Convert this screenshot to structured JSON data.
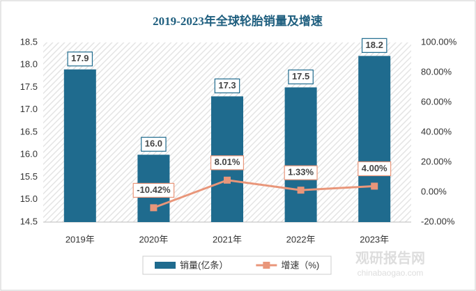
{
  "chart_data": {
    "type": "bar",
    "title": "2019-2023年全球轮胎销量及增速",
    "categories": [
      "2019年",
      "2020年",
      "2021年",
      "2022年",
      "2023年"
    ],
    "series": [
      {
        "name": "销量(亿条）",
        "type": "bar",
        "color": "#1f6b8e",
        "values": [
          17.9,
          16.0,
          17.3,
          17.5,
          18.2
        ],
        "value_labels": [
          "17.9",
          "16.0",
          "17.3",
          "17.5",
          "18.2"
        ]
      },
      {
        "name": "增速（%)",
        "type": "line",
        "axis": "y2",
        "color": "#e9967a",
        "values": [
          null,
          -10.42,
          8.01,
          1.33,
          4.0
        ],
        "value_labels": [
          null,
          "-10.42%",
          "8.01%",
          "1.33%",
          "4.00%"
        ]
      }
    ],
    "ylim": [
      14.5,
      18.5
    ],
    "yticks": [
      14.5,
      {
        "value": 15,
        "label": "15.0"
      },
      15.5,
      {
        "value": 16,
        "label": "16.0"
      },
      16.5,
      {
        "value": 17,
        "label": "17.0"
      },
      17.5,
      {
        "value": 18,
        "label": "18.0"
      },
      18.5
    ],
    "y2lim": [
      -20,
      100
    ],
    "y2ticks": [
      {
        "value": -20,
        "label": "-20.00%"
      },
      {
        "value": 0,
        "label": "0.00%"
      },
      {
        "value": 20,
        "label": "20.00%"
      },
      {
        "value": 40,
        "label": "40.00%"
      },
      {
        "value": 60,
        "label": "60.00%"
      },
      {
        "value": 80,
        "label": "80.00%"
      },
      {
        "value": 100,
        "label": "100.00%"
      }
    ],
    "legend": "bottom",
    "watermark": [
      "观研报告网",
      "chinabaogao.com"
    ]
  }
}
